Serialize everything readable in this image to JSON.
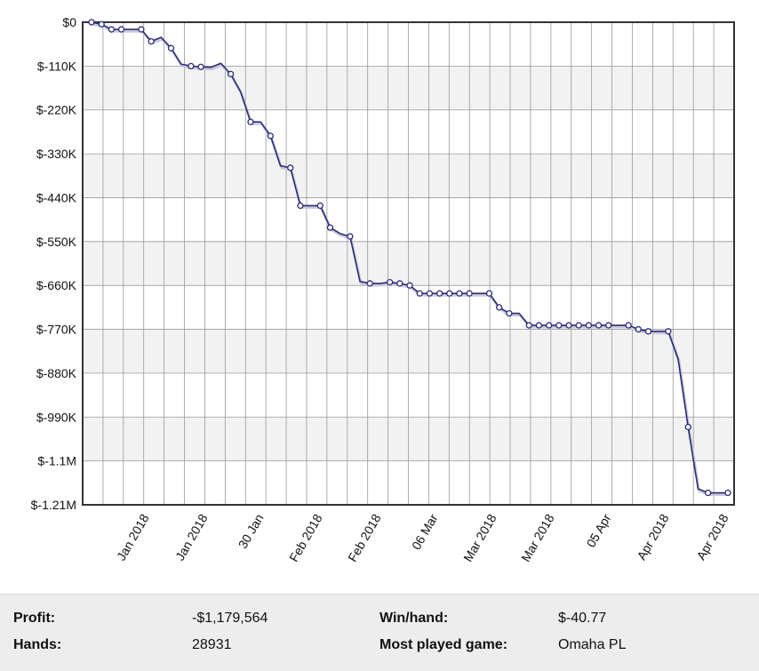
{
  "chart_data": {
    "type": "line",
    "y_tick_labels": [
      "$0",
      "$-110K",
      "$-220K",
      "$-330K",
      "$-440K",
      "$-550K",
      "$-660K",
      "$-770K",
      "$-880K",
      "$-990K",
      "$-1.1M",
      "$-1.21M"
    ],
    "x_tick_labels": [
      "Jan 2018",
      "Jan 2018",
      "30 Jan",
      "Feb 2018",
      "Feb 2018",
      "06 Mar",
      "Mar 2018",
      "Mar 2018",
      "05 Apr",
      "Apr 2018",
      "Apr 2018"
    ],
    "ylim": [
      -1210000,
      0
    ],
    "grid": true,
    "line_color": "#2b2b7a",
    "series": [
      {
        "values": [
          0,
          -5000,
          -18000,
          -18000,
          -18000,
          -18000,
          -48000,
          -38000,
          -65000,
          -105000,
          -110000,
          -112000,
          -113000,
          -103000,
          -130000,
          -175000,
          -250000,
          -250000,
          -285000,
          -360000,
          -365000,
          -460000,
          -460000,
          -460000,
          -515000,
          -530000,
          -537000,
          -650000,
          -655000,
          -655000,
          -652000,
          -655000,
          -660000,
          -680000,
          -680000,
          -680000,
          -680000,
          -680000,
          -680000,
          -680000,
          -680000,
          -715000,
          -730000,
          -730000,
          -760000,
          -760000,
          -760000,
          -760000,
          -760000,
          -760000,
          -760000,
          -760000,
          -760000,
          -760000,
          -760000,
          -770000,
          -775000,
          -775000,
          -775000,
          -845000,
          -1015000,
          -1170000,
          -1180000,
          -1180000,
          -1180000
        ],
        "markers": [
          1,
          1,
          1,
          1,
          0,
          1,
          1,
          0,
          1,
          0,
          1,
          1,
          0,
          0,
          1,
          0,
          1,
          0,
          1,
          0,
          1,
          1,
          0,
          1,
          1,
          0,
          1,
          0,
          1,
          0,
          1,
          1,
          1,
          1,
          1,
          1,
          1,
          1,
          1,
          0,
          1,
          1,
          1,
          0,
          1,
          1,
          1,
          1,
          1,
          1,
          1,
          1,
          1,
          0,
          1,
          1,
          1,
          0,
          1,
          0,
          1,
          0,
          1,
          0,
          1
        ]
      }
    ]
  },
  "stats": {
    "profit_label": "Profit:",
    "profit_value": "-$1,179,564",
    "winhand_label": "Win/hand:",
    "winhand_value": "$-40.77",
    "hands_label": "Hands:",
    "hands_value": "28931",
    "game_label": "Most played game:",
    "game_value": "Omaha PL"
  }
}
